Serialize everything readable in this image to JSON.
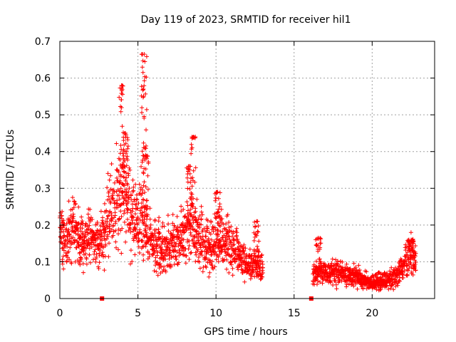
{
  "chart_data": {
    "type": "scatter",
    "title": "Day 119 of 2023, SRMTID for receiver hil1",
    "xlabel": "GPS time / hours",
    "ylabel": "SRMTID / TECUs",
    "xlim": [
      0,
      24
    ],
    "ylim": [
      0,
      0.7
    ],
    "x_ticks": [
      0,
      5,
      10,
      15,
      20
    ],
    "y_ticks": [
      0,
      0.1,
      0.2,
      0.3,
      0.4,
      0.5,
      0.6,
      0.7
    ],
    "x_tick_labels": [
      "0",
      "5",
      "10",
      "15",
      "20"
    ],
    "y_tick_labels": [
      "0",
      "0.1",
      "0.2",
      "0.3",
      "0.4",
      "0.5",
      "0.6",
      "0.7"
    ],
    "grid": true,
    "marker": "+",
    "series_color": "#ff0000",
    "trend": [
      [
        0.0,
        0.17
      ],
      [
        0.5,
        0.16
      ],
      [
        1.0,
        0.19
      ],
      [
        1.5,
        0.15
      ],
      [
        2.0,
        0.17
      ],
      [
        2.5,
        0.14
      ],
      [
        3.0,
        0.2
      ],
      [
        3.3,
        0.24
      ],
      [
        3.7,
        0.28
      ],
      [
        4.0,
        0.3
      ],
      [
        4.3,
        0.26
      ],
      [
        4.7,
        0.23
      ],
      [
        5.0,
        0.21
      ],
      [
        5.3,
        0.2
      ],
      [
        5.7,
        0.17
      ],
      [
        6.0,
        0.16
      ],
      [
        6.5,
        0.13
      ],
      [
        7.0,
        0.14
      ],
      [
        7.5,
        0.15
      ],
      [
        8.0,
        0.17
      ],
      [
        8.5,
        0.2
      ],
      [
        9.0,
        0.16
      ],
      [
        9.5,
        0.14
      ],
      [
        10.0,
        0.15
      ],
      [
        10.5,
        0.16
      ],
      [
        11.0,
        0.14
      ],
      [
        11.5,
        0.12
      ],
      [
        12.0,
        0.09
      ],
      [
        12.5,
        0.09
      ],
      [
        13.0,
        0.09
      ],
      [
        16.2,
        0.07
      ],
      [
        17.0,
        0.07
      ],
      [
        18.0,
        0.07
      ],
      [
        19.0,
        0.06
      ],
      [
        19.5,
        0.05
      ],
      [
        20.0,
        0.04
      ],
      [
        20.5,
        0.05
      ],
      [
        21.0,
        0.05
      ],
      [
        21.5,
        0.06
      ],
      [
        22.0,
        0.09
      ],
      [
        22.5,
        0.12
      ],
      [
        22.8,
        0.1
      ]
    ],
    "peaks": [
      {
        "x": 3.95,
        "y": 0.58
      },
      {
        "x": 4.2,
        "y": 0.45
      },
      {
        "x": 5.4,
        "y": 0.665
      },
      {
        "x": 5.35,
        "y": 0.57
      },
      {
        "x": 5.5,
        "y": 0.39
      },
      {
        "x": 8.55,
        "y": 0.44
      },
      {
        "x": 8.3,
        "y": 0.36
      },
      {
        "x": 10.1,
        "y": 0.29
      },
      {
        "x": 12.6,
        "y": 0.21
      },
      {
        "x": 16.55,
        "y": 0.165
      },
      {
        "x": 22.5,
        "y": 0.16
      }
    ],
    "gaps": [
      [
        13.1,
        16.1
      ]
    ],
    "markers_at_zero": [
      2.7,
      16.1
    ]
  }
}
